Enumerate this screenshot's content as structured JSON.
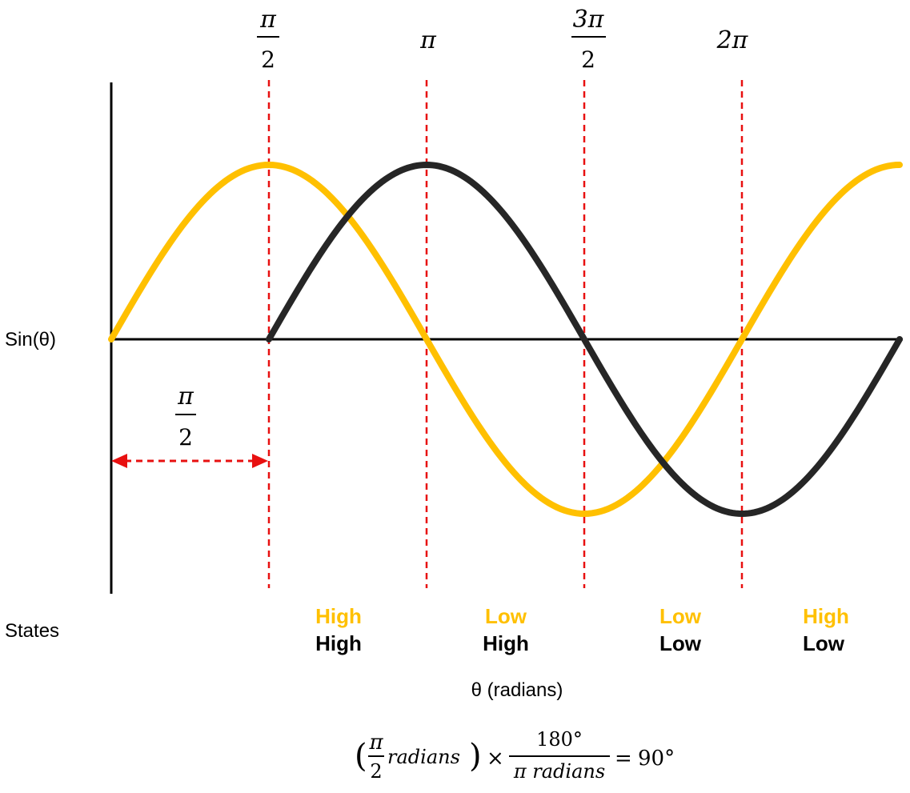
{
  "diagram": {
    "y_label": "Sin(θ)",
    "x_label": "θ (radians)",
    "states_label": "States",
    "ticks": [
      {
        "num": "π",
        "den": "2",
        "frac": true
      },
      {
        "num": "π",
        "den": "",
        "frac": false
      },
      {
        "num": "3π",
        "den": "2",
        "frac": true
      },
      {
        "num": "2π",
        "den": "",
        "frac": false
      }
    ],
    "phase_shift": {
      "num": "π",
      "den": "2"
    },
    "states": [
      {
        "top": "High",
        "bottom": "High"
      },
      {
        "top": "Low",
        "bottom": "High"
      },
      {
        "top": "Low",
        "bottom": "Low"
      },
      {
        "top": "High",
        "bottom": "Low"
      }
    ],
    "formula": {
      "open": "(",
      "num": "π",
      "den": "2",
      "unit": "radians",
      "close": ")",
      "times": "×",
      "frac_num": "180°",
      "frac_den": "π radians",
      "equals": "=",
      "result": "90°"
    },
    "colors": {
      "wave_a": "#ffc000",
      "wave_b": "#262626",
      "guide": "#e81010",
      "axis": "#000000"
    }
  },
  "chart_data": {
    "type": "line",
    "xlabel": "θ (radians)",
    "ylabel": "Sin(θ)",
    "x_range_radians": [
      0,
      2.5
    ],
    "x_range_unit": "π",
    "y_range": [
      -1,
      1
    ],
    "tick_values_pi": [
      0.5,
      1,
      1.5,
      2
    ],
    "series": [
      {
        "formula": "sin(θ)",
        "color": "#ffc000",
        "x_start_pi": 0,
        "x_end_pi": 2.5
      },
      {
        "formula": "sin(θ − π/2)",
        "color": "#262626",
        "x_start_pi": 0.5,
        "x_end_pi": 2.5
      }
    ],
    "phase_shift_pi": 0.5
  }
}
